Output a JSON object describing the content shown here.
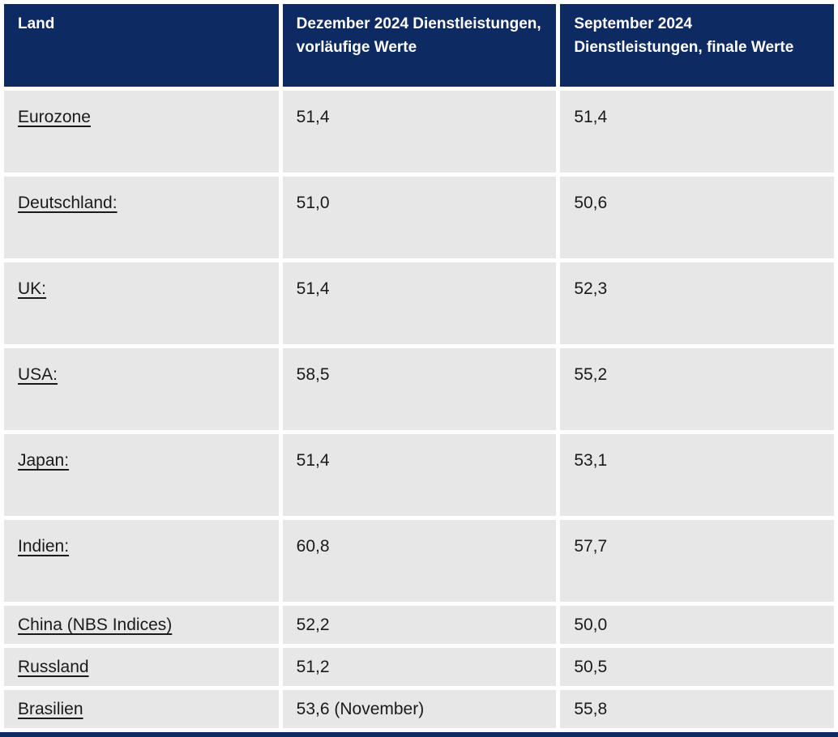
{
  "colors": {
    "header_background": "#0e2a63",
    "row_background": "#e8e7e8",
    "header_text": "#ffffff",
    "body_text": "#1a1a1a",
    "gutter": "#ffffff"
  },
  "chart_data": {
    "type": "table",
    "columns": [
      "Land",
      "Dezember 2024 Dienstleistungen, vorläufige Werte",
      "September 2024 Dienstleistungen, finale Werte"
    ],
    "rows": [
      {
        "land": "Eurozone",
        "dezember": "51,4",
        "september": "51,4"
      },
      {
        "land": "Deutschland:",
        "dezember": "51,0",
        "september": "50,6"
      },
      {
        "land": "UK:",
        "dezember": "51,4",
        "september": "52,3"
      },
      {
        "land": "USA:",
        "dezember": "58,5",
        "september": "55,2"
      },
      {
        "land": "Japan:",
        "dezember": "51,4",
        "september": "53,1"
      },
      {
        "land": "Indien:",
        "dezember": "60,8",
        "september": "57,7"
      },
      {
        "land": "China (NBS Indices)",
        "dezember": "52,2",
        "september": "50,0"
      },
      {
        "land": "Russland",
        "dezember": "51,2",
        "september": "50,5"
      },
      {
        "land": "Brasilien",
        "dezember": "53,6 (November)",
        "september": "55,8"
      }
    ]
  }
}
